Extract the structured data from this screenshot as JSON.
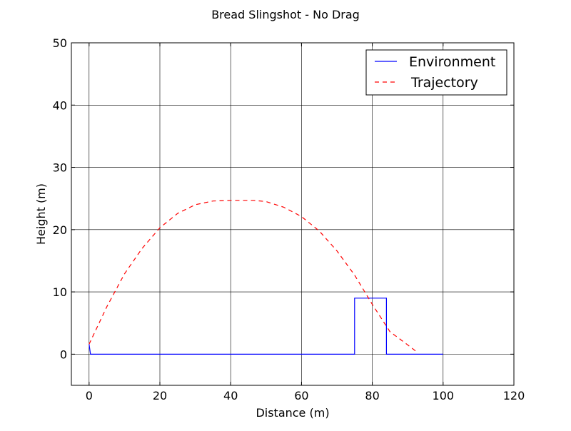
{
  "chart_data": {
    "type": "line",
    "title": "Bread Slingshot - No Drag",
    "xlabel": "Distance (m)",
    "ylabel": "Height (m)",
    "xlim": [
      -5,
      120
    ],
    "ylim": [
      -5,
      50
    ],
    "xticks": [
      0,
      20,
      40,
      60,
      80,
      100,
      120
    ],
    "yticks": [
      0,
      10,
      20,
      30,
      40,
      50
    ],
    "xtick_labels": [
      "0",
      "20",
      "40",
      "60",
      "80",
      "100",
      "120"
    ],
    "ytick_labels": [
      "0",
      "10",
      "20",
      "30",
      "40",
      "50"
    ],
    "grid": true,
    "legend_position": "top-right",
    "series": [
      {
        "name": "Environment",
        "style": "solid",
        "color": "#0000ff",
        "x": [
          0,
          0.4,
          75,
          75,
          84,
          84,
          100
        ],
        "y": [
          1.6,
          0,
          0,
          9,
          9,
          0,
          0
        ]
      },
      {
        "name": "Trajectory",
        "style": "dashed",
        "color": "#ff0000",
        "x": [
          0,
          5,
          10,
          15,
          20,
          25,
          30,
          35,
          40,
          45,
          46.5,
          50,
          55,
          60,
          65,
          70,
          75,
          80,
          85,
          90,
          92.7
        ],
        "y": [
          1.6,
          7.6,
          12.9,
          17.0,
          20.3,
          22.6,
          24.0,
          24.6,
          24.7,
          24.7,
          24.7,
          24.5,
          23.6,
          22.1,
          19.8,
          16.6,
          12.7,
          8.0,
          3.6,
          1.5,
          0.3
        ]
      }
    ]
  }
}
